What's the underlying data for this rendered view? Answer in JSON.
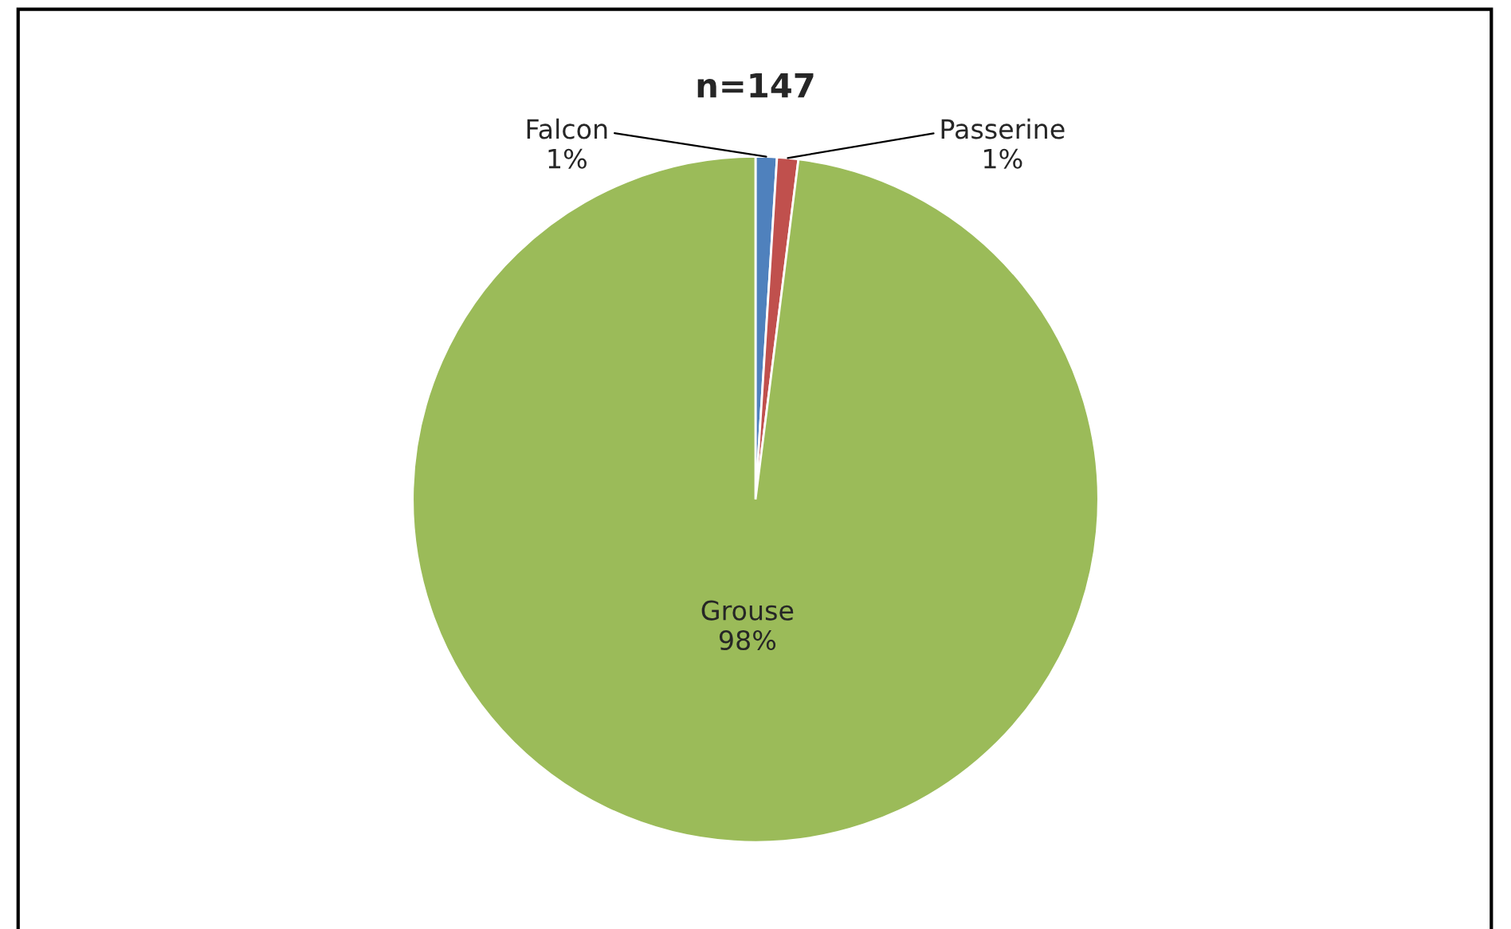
{
  "chart_data": {
    "type": "pie",
    "title": "n=147",
    "categories": [
      "Falcon",
      "Passerine",
      "Grouse"
    ],
    "values": [
      1,
      1,
      98
    ],
    "value_labels": [
      "1%",
      "1%",
      "98%"
    ],
    "colors": [
      "#4f81bd",
      "#c0504d",
      "#9bbb59"
    ],
    "legend": false
  }
}
